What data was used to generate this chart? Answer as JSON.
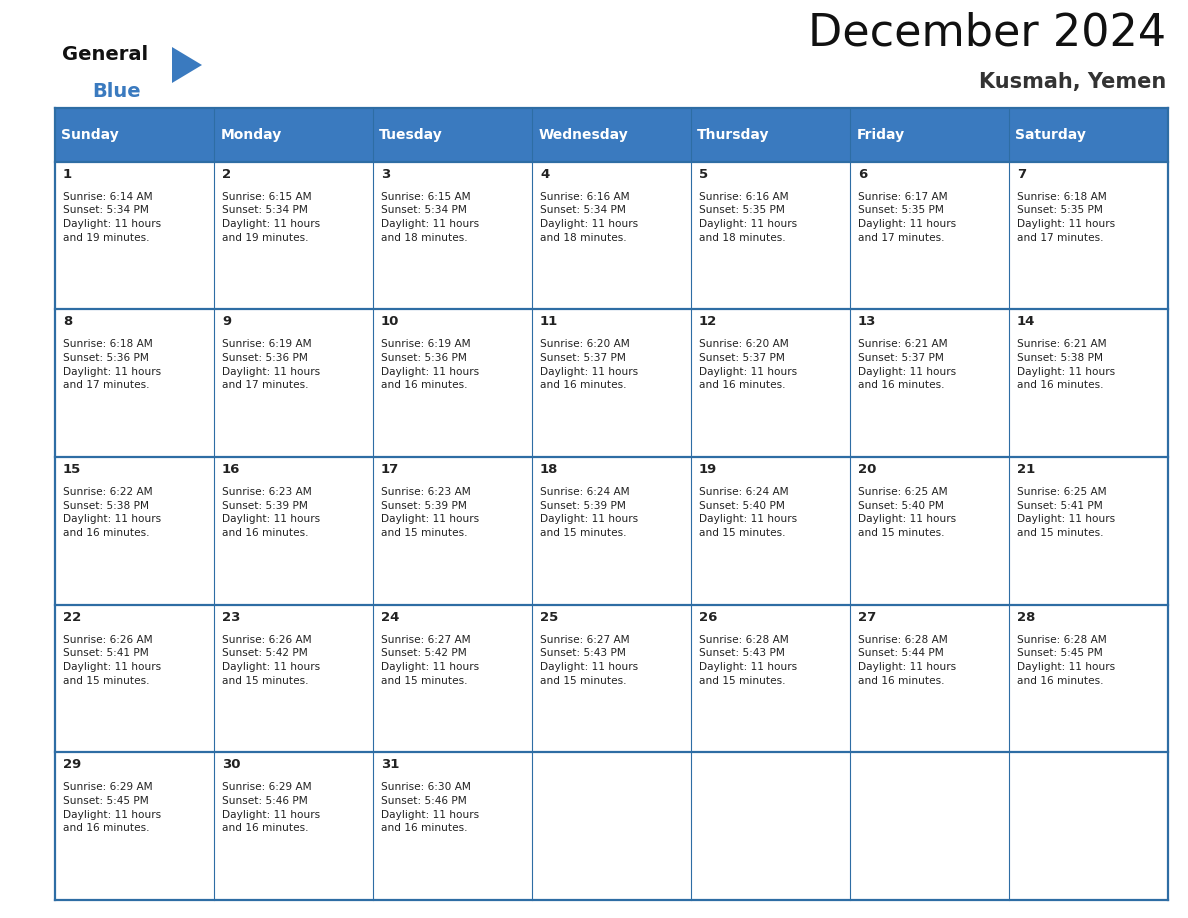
{
  "title": "December 2024",
  "subtitle": "Kusmah, Yemen",
  "header_color": "#3a7abf",
  "header_text_color": "#ffffff",
  "cell_bg_color": "#ffffff",
  "border_color": "#2e6da4",
  "text_color": "#222222",
  "days_of_week": [
    "Sunday",
    "Monday",
    "Tuesday",
    "Wednesday",
    "Thursday",
    "Friday",
    "Saturday"
  ],
  "weeks": [
    [
      {
        "day": 1,
        "sunrise": "6:14 AM",
        "sunset": "5:34 PM",
        "daylight_hours": 11,
        "daylight_minutes": 19
      },
      {
        "day": 2,
        "sunrise": "6:15 AM",
        "sunset": "5:34 PM",
        "daylight_hours": 11,
        "daylight_minutes": 19
      },
      {
        "day": 3,
        "sunrise": "6:15 AM",
        "sunset": "5:34 PM",
        "daylight_hours": 11,
        "daylight_minutes": 18
      },
      {
        "day": 4,
        "sunrise": "6:16 AM",
        "sunset": "5:34 PM",
        "daylight_hours": 11,
        "daylight_minutes": 18
      },
      {
        "day": 5,
        "sunrise": "6:16 AM",
        "sunset": "5:35 PM",
        "daylight_hours": 11,
        "daylight_minutes": 18
      },
      {
        "day": 6,
        "sunrise": "6:17 AM",
        "sunset": "5:35 PM",
        "daylight_hours": 11,
        "daylight_minutes": 17
      },
      {
        "day": 7,
        "sunrise": "6:18 AM",
        "sunset": "5:35 PM",
        "daylight_hours": 11,
        "daylight_minutes": 17
      }
    ],
    [
      {
        "day": 8,
        "sunrise": "6:18 AM",
        "sunset": "5:36 PM",
        "daylight_hours": 11,
        "daylight_minutes": 17
      },
      {
        "day": 9,
        "sunrise": "6:19 AM",
        "sunset": "5:36 PM",
        "daylight_hours": 11,
        "daylight_minutes": 17
      },
      {
        "day": 10,
        "sunrise": "6:19 AM",
        "sunset": "5:36 PM",
        "daylight_hours": 11,
        "daylight_minutes": 16
      },
      {
        "day": 11,
        "sunrise": "6:20 AM",
        "sunset": "5:37 PM",
        "daylight_hours": 11,
        "daylight_minutes": 16
      },
      {
        "day": 12,
        "sunrise": "6:20 AM",
        "sunset": "5:37 PM",
        "daylight_hours": 11,
        "daylight_minutes": 16
      },
      {
        "day": 13,
        "sunrise": "6:21 AM",
        "sunset": "5:37 PM",
        "daylight_hours": 11,
        "daylight_minutes": 16
      },
      {
        "day": 14,
        "sunrise": "6:21 AM",
        "sunset": "5:38 PM",
        "daylight_hours": 11,
        "daylight_minutes": 16
      }
    ],
    [
      {
        "day": 15,
        "sunrise": "6:22 AM",
        "sunset": "5:38 PM",
        "daylight_hours": 11,
        "daylight_minutes": 16
      },
      {
        "day": 16,
        "sunrise": "6:23 AM",
        "sunset": "5:39 PM",
        "daylight_hours": 11,
        "daylight_minutes": 16
      },
      {
        "day": 17,
        "sunrise": "6:23 AM",
        "sunset": "5:39 PM",
        "daylight_hours": 11,
        "daylight_minutes": 15
      },
      {
        "day": 18,
        "sunrise": "6:24 AM",
        "sunset": "5:39 PM",
        "daylight_hours": 11,
        "daylight_minutes": 15
      },
      {
        "day": 19,
        "sunrise": "6:24 AM",
        "sunset": "5:40 PM",
        "daylight_hours": 11,
        "daylight_minutes": 15
      },
      {
        "day": 20,
        "sunrise": "6:25 AM",
        "sunset": "5:40 PM",
        "daylight_hours": 11,
        "daylight_minutes": 15
      },
      {
        "day": 21,
        "sunrise": "6:25 AM",
        "sunset": "5:41 PM",
        "daylight_hours": 11,
        "daylight_minutes": 15
      }
    ],
    [
      {
        "day": 22,
        "sunrise": "6:26 AM",
        "sunset": "5:41 PM",
        "daylight_hours": 11,
        "daylight_minutes": 15
      },
      {
        "day": 23,
        "sunrise": "6:26 AM",
        "sunset": "5:42 PM",
        "daylight_hours": 11,
        "daylight_minutes": 15
      },
      {
        "day": 24,
        "sunrise": "6:27 AM",
        "sunset": "5:42 PM",
        "daylight_hours": 11,
        "daylight_minutes": 15
      },
      {
        "day": 25,
        "sunrise": "6:27 AM",
        "sunset": "5:43 PM",
        "daylight_hours": 11,
        "daylight_minutes": 15
      },
      {
        "day": 26,
        "sunrise": "6:28 AM",
        "sunset": "5:43 PM",
        "daylight_hours": 11,
        "daylight_minutes": 15
      },
      {
        "day": 27,
        "sunrise": "6:28 AM",
        "sunset": "5:44 PM",
        "daylight_hours": 11,
        "daylight_minutes": 16
      },
      {
        "day": 28,
        "sunrise": "6:28 AM",
        "sunset": "5:45 PM",
        "daylight_hours": 11,
        "daylight_minutes": 16
      }
    ],
    [
      {
        "day": 29,
        "sunrise": "6:29 AM",
        "sunset": "5:45 PM",
        "daylight_hours": 11,
        "daylight_minutes": 16
      },
      {
        "day": 30,
        "sunrise": "6:29 AM",
        "sunset": "5:46 PM",
        "daylight_hours": 11,
        "daylight_minutes": 16
      },
      {
        "day": 31,
        "sunrise": "6:30 AM",
        "sunset": "5:46 PM",
        "daylight_hours": 11,
        "daylight_minutes": 16
      },
      null,
      null,
      null,
      null
    ]
  ],
  "n_weeks": 5,
  "n_cols": 7,
  "fig_width": 11.88,
  "fig_height": 9.18,
  "dpi": 100
}
